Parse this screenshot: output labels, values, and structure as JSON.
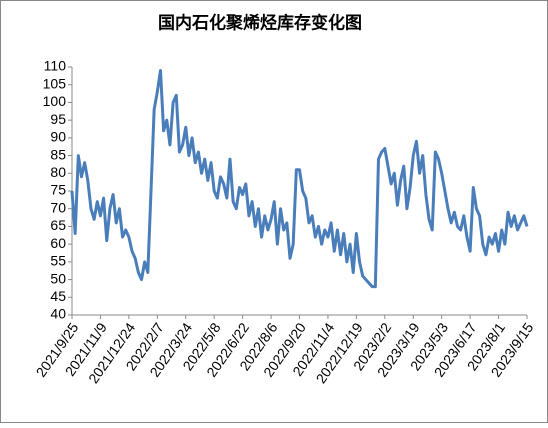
{
  "chart_data": {
    "type": "line",
    "title": "国内石化聚烯烃库存变化图",
    "categories": [
      "2021/9/25",
      null,
      null,
      null,
      null,
      null,
      null,
      null,
      null,
      "2021/11/9",
      null,
      null,
      null,
      null,
      null,
      null,
      null,
      null,
      "2021/12/24",
      null,
      null,
      null,
      null,
      null,
      null,
      null,
      null,
      "2022/2/7",
      null,
      null,
      null,
      null,
      null,
      null,
      null,
      null,
      "2022/3/24",
      null,
      null,
      null,
      null,
      null,
      null,
      null,
      null,
      "2022/5/8",
      null,
      null,
      null,
      null,
      null,
      null,
      null,
      null,
      "2022/6/22",
      null,
      null,
      null,
      null,
      null,
      null,
      null,
      null,
      "2022/8/6",
      null,
      null,
      null,
      null,
      null,
      null,
      null,
      null,
      "2022/9/20",
      null,
      null,
      null,
      null,
      null,
      null,
      null,
      null,
      "2022/11/4",
      null,
      null,
      null,
      null,
      null,
      null,
      null,
      null,
      "2022/12/19",
      null,
      null,
      null,
      null,
      null,
      null,
      null,
      null,
      "2023/2/2",
      null,
      null,
      null,
      null,
      null,
      null,
      null,
      null,
      "2023/3/19",
      null,
      null,
      null,
      null,
      null,
      null,
      null,
      null,
      "2023/5/3",
      null,
      null,
      null,
      null,
      null,
      null,
      null,
      null,
      "2023/6/17",
      null,
      null,
      null,
      null,
      null,
      null,
      null,
      null,
      "2023/8/1",
      null,
      null,
      null,
      null,
      null,
      null,
      null,
      null,
      "2023/9/15"
    ],
    "series": [
      {
        "name": "库存",
        "color": "#4a7ebb",
        "values": [
          75,
          63,
          85,
          79,
          83,
          78,
          70,
          67,
          72,
          68,
          73,
          61,
          70,
          74,
          66,
          70,
          62,
          64,
          62,
          58,
          56,
          52,
          50,
          55,
          52,
          75,
          98,
          103,
          109,
          92,
          95,
          88,
          100,
          102,
          86,
          88,
          93,
          85,
          90,
          83,
          86,
          80,
          84,
          78,
          83,
          75,
          73,
          79,
          77,
          73,
          84,
          72,
          70,
          76,
          74,
          77,
          68,
          72,
          65,
          70,
          62,
          68,
          64,
          67,
          72,
          60,
          70,
          64,
          66,
          56,
          60,
          81,
          81,
          75,
          73,
          66,
          68,
          62,
          65,
          60,
          64,
          62,
          66,
          58,
          64,
          57,
          63,
          55,
          60,
          52,
          63,
          55,
          51,
          50,
          49,
          48,
          48,
          84,
          86,
          87,
          82,
          77,
          80,
          71,
          78,
          82,
          70,
          76,
          85,
          89,
          80,
          85,
          74,
          67,
          64,
          86,
          84,
          80,
          75,
          70,
          66,
          69,
          65,
          64,
          68,
          62,
          58,
          76,
          70,
          68,
          60,
          57,
          62,
          60,
          63,
          58,
          64,
          60,
          69,
          65,
          68,
          64,
          66,
          68,
          65
        ]
      }
    ],
    "ylim": [
      40,
      110
    ],
    "yticks": [
      40,
      45,
      50,
      55,
      60,
      65,
      70,
      75,
      80,
      85,
      90,
      95,
      100,
      105,
      110
    ]
  }
}
